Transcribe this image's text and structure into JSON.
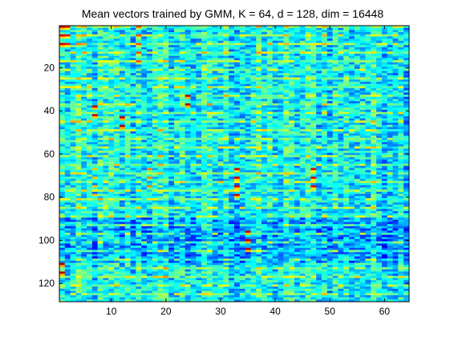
{
  "chart_data": {
    "type": "heatmap",
    "title": "Mean vectors trained by GMM, K = 64, d = 128, dim = 16448",
    "xlabel": "",
    "ylabel": "",
    "colormap": "jet",
    "n_cols": 64,
    "n_rows": 128,
    "xlim": [
      0.5,
      64.5
    ],
    "ylim": [
      0.5,
      128.5
    ],
    "y_reversed": true,
    "x_ticks": [
      10,
      20,
      30,
      40,
      50,
      60
    ],
    "y_ticks": [
      20,
      40,
      60,
      80,
      100,
      120
    ],
    "clim": [
      0,
      1
    ],
    "base_level": 0.18,
    "hotspots": [
      {
        "col": 1,
        "rows": [
          1,
          5,
          9
        ],
        "level": 0.92
      },
      {
        "col": 2,
        "rows": [
          1,
          5,
          9
        ],
        "level": 0.86
      },
      {
        "col": 5,
        "rows": [
          1,
          5,
          9,
          13
        ],
        "level": 0.72
      },
      {
        "col": 7,
        "rows": [
          38,
          42
        ],
        "level": 0.93
      },
      {
        "col": 12,
        "rows": [
          43,
          47
        ],
        "level": 0.95
      },
      {
        "col": 15,
        "rows": [
          1,
          5,
          9,
          13,
          17
        ],
        "level": 0.8
      },
      {
        "col": 24,
        "rows": [
          33,
          37
        ],
        "level": 0.95
      },
      {
        "col": 33,
        "rows": [
          67,
          71,
          75,
          79
        ],
        "level": 0.92
      },
      {
        "col": 35,
        "rows": [
          96,
          100,
          104
        ],
        "level": 0.94
      },
      {
        "col": 47,
        "rows": [
          67,
          71,
          75
        ],
        "level": 0.9
      },
      {
        "col": 1,
        "rows": [
          111,
          115
        ],
        "level": 0.95
      },
      {
        "col": 17,
        "rows": [
          67,
          71,
          75
        ],
        "level": 0.75
      },
      {
        "col": 7,
        "rows": [
          67,
          71,
          75,
          79
        ],
        "level": 0.68
      },
      {
        "col": 42,
        "rows": [
          1,
          5,
          9
        ],
        "level": 0.7
      },
      {
        "col": 49,
        "rows": [
          1,
          5,
          9
        ],
        "level": 0.7
      },
      {
        "col": 62,
        "rows": [
          1,
          5,
          9
        ],
        "level": 0.66
      }
    ]
  }
}
